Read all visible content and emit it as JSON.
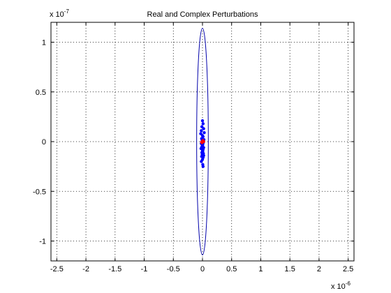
{
  "chart_data": {
    "type": "scatter",
    "title": "Real and Complex Perturbations",
    "xlabel": "",
    "ylabel": "",
    "xlim": [
      -2.6e-06,
      2.6e-06
    ],
    "ylim": [
      -1.2e-07,
      1.2e-07
    ],
    "grid": true,
    "x_multiplier": {
      "base": "x 10",
      "exponent": "-6"
    },
    "y_multiplier": {
      "base": "x 10",
      "exponent": "-7"
    },
    "x_ticks": [
      {
        "value": -2.5e-06,
        "label": "-2.5"
      },
      {
        "value": -2e-06,
        "label": "-2"
      },
      {
        "value": -1.5e-06,
        "label": "-1.5"
      },
      {
        "value": -1e-06,
        "label": "-1"
      },
      {
        "value": -5e-07,
        "label": "-0.5"
      },
      {
        "value": 0,
        "label": "0"
      },
      {
        "value": 5e-07,
        "label": "0.5"
      },
      {
        "value": 1e-06,
        "label": "1"
      },
      {
        "value": 1.5e-06,
        "label": "1.5"
      },
      {
        "value": 2e-06,
        "label": "2"
      },
      {
        "value": 2.5e-06,
        "label": "2.5"
      }
    ],
    "y_ticks": [
      {
        "value": -1e-07,
        "label": "-1"
      },
      {
        "value": -5e-08,
        "label": "-0.5"
      },
      {
        "value": 0,
        "label": "0"
      },
      {
        "value": 5e-08,
        "label": "0.5"
      },
      {
        "value": 1e-07,
        "label": "1"
      }
    ],
    "series": [
      {
        "kind": "ellipse",
        "color": "#0000aa",
        "center": [
          0,
          0
        ],
        "rx": 1e-07,
        "ry": 1.14e-07
      },
      {
        "kind": "points",
        "color": "#0000ff",
        "marker": "dot",
        "x": [
          0,
          1e-08,
          -1e-08,
          2e-08,
          -2e-08,
          3e-08,
          -3e-08,
          0,
          1e-08,
          -1.5e-08,
          2.5e-08,
          -5e-09,
          1.5e-08,
          -2e-08,
          5e-09,
          0,
          -1e-08,
          2e-08,
          -2.5e-08,
          1e-08,
          0,
          5e-09,
          -1e-08,
          1.5e-08,
          -5e-09,
          2e-08,
          -1.5e-08,
          1e-08,
          0,
          -2e-08,
          5e-09,
          1e-08
        ],
        "y": [
          2.1e-08,
          1.8e-08,
          1.5e-08,
          1.3e-08,
          1.1e-08,
          9e-09,
          8e-09,
          6e-09,
          5e-09,
          3e-09,
          2e-09,
          1e-09,
          -1e-09,
          -2e-09,
          -3e-09,
          -4e-09,
          -5e-09,
          -6e-09,
          -7e-09,
          -8e-09,
          -9e-09,
          -1e-08,
          -1.1e-08,
          -1.2e-08,
          -1.3e-08,
          -1.4e-08,
          -1.5e-08,
          -1.6e-08,
          -1.8e-08,
          -2e-08,
          -2.3e-08,
          -2.5e-08
        ]
      },
      {
        "kind": "points",
        "color": "#ff0000",
        "marker": "dot",
        "x": [
          0,
          1.5e-08,
          -1.5e-08,
          8e-09,
          -8e-09,
          2e-08
        ],
        "y": [
          0,
          5e-10,
          -5e-10,
          1e-09,
          -1e-09,
          0
        ]
      }
    ]
  }
}
